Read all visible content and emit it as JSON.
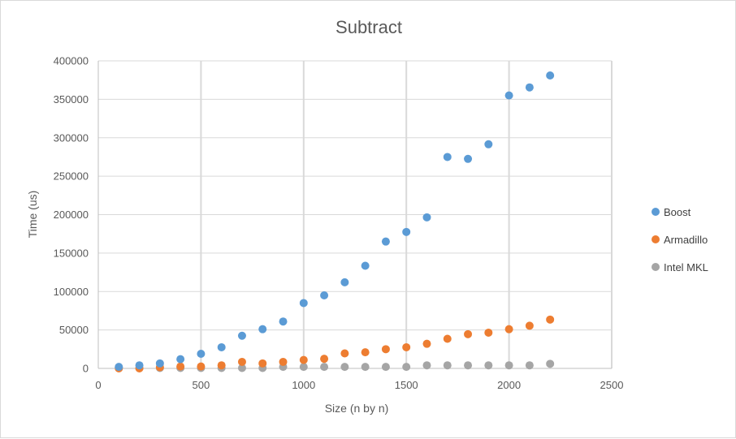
{
  "chart_data": {
    "type": "scatter",
    "title": "Subtract",
    "xlabel": "Size (n by n)",
    "ylabel": "Time (us)",
    "xlim": [
      0,
      2500
    ],
    "ylim": [
      0,
      400000
    ],
    "x_ticks": [
      "0",
      "500",
      "1000",
      "1500",
      "2000",
      "2500"
    ],
    "y_ticks": [
      "0",
      "50000",
      "100000",
      "150000",
      "200000",
      "250000",
      "300000",
      "350000",
      "400000"
    ],
    "grid": true,
    "legend_position": "right",
    "series": [
      {
        "name": "Boost",
        "color": "#5b9bd5",
        "points": [
          [
            100,
            2000
          ],
          [
            200,
            4000
          ],
          [
            300,
            6500
          ],
          [
            400,
            12000
          ],
          [
            500,
            19000
          ],
          [
            600,
            27500
          ],
          [
            700,
            42500
          ],
          [
            800,
            51000
          ],
          [
            900,
            61000
          ],
          [
            1000,
            85000
          ],
          [
            1100,
            95000
          ],
          [
            1200,
            112000
          ],
          [
            1300,
            133500
          ],
          [
            1400,
            165000
          ],
          [
            1500,
            177500
          ],
          [
            1600,
            196500
          ],
          [
            1700,
            275000
          ],
          [
            1800,
            272500
          ],
          [
            1900,
            291500
          ],
          [
            2000,
            355000
          ],
          [
            2100,
            365500
          ],
          [
            2200,
            381000
          ]
        ]
      },
      {
        "name": "Armadillo",
        "color": "#ed7d31",
        "points": [
          [
            100,
            0
          ],
          [
            200,
            0
          ],
          [
            300,
            1500
          ],
          [
            400,
            2500
          ],
          [
            500,
            2500
          ],
          [
            600,
            4000
          ],
          [
            700,
            8500
          ],
          [
            800,
            6500
          ],
          [
            900,
            8500
          ],
          [
            1000,
            11000
          ],
          [
            1100,
            12500
          ],
          [
            1200,
            19500
          ],
          [
            1300,
            21000
          ],
          [
            1400,
            25000
          ],
          [
            1500,
            27500
          ],
          [
            1600,
            32000
          ],
          [
            1700,
            38500
          ],
          [
            1800,
            44500
          ],
          [
            1900,
            46500
          ],
          [
            2000,
            51000
          ],
          [
            2100,
            55500
          ],
          [
            2200,
            63500
          ]
        ]
      },
      {
        "name": "Intel MKL",
        "color": "#a5a5a5",
        "points": [
          [
            100,
            1500
          ],
          [
            200,
            500
          ],
          [
            300,
            500
          ],
          [
            400,
            500
          ],
          [
            500,
            500
          ],
          [
            600,
            500
          ],
          [
            700,
            500
          ],
          [
            800,
            500
          ],
          [
            900,
            2000
          ],
          [
            1000,
            2000
          ],
          [
            1100,
            2000
          ],
          [
            1200,
            2000
          ],
          [
            1300,
            2000
          ],
          [
            1400,
            2000
          ],
          [
            1500,
            2000
          ],
          [
            1600,
            4000
          ],
          [
            1700,
            4000
          ],
          [
            1800,
            4000
          ],
          [
            1900,
            4000
          ],
          [
            2000,
            4000
          ],
          [
            2100,
            4000
          ],
          [
            2200,
            6000
          ]
        ]
      }
    ]
  }
}
